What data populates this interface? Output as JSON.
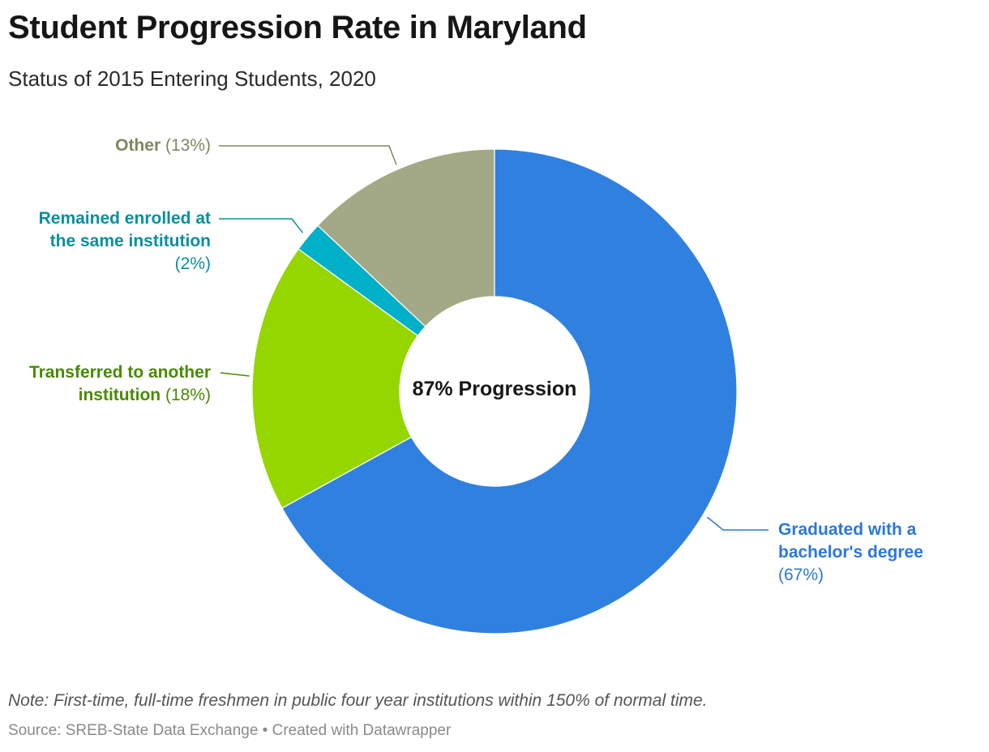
{
  "header": {
    "title": "Student Progression Rate in Maryland",
    "subtitle": "Status of 2015 Entering Students, 2020"
  },
  "chart_data": {
    "type": "pie",
    "donut": true,
    "title": "Student Progression Rate in Maryland",
    "subtitle": "Status of 2015 Entering Students, 2020",
    "center_label": "87% Progression",
    "slices": [
      {
        "name_line1": "Graduated with a",
        "name_line2": "bachelor's degree",
        "value": 67,
        "pct_text": "(67%)",
        "color": "#3080e0"
      },
      {
        "name_line1": "Transferred to another",
        "name_line2": "institution",
        "value": 18,
        "pct_text": "(18%)",
        "color": "#96d600"
      },
      {
        "name_line1": "Remained enrolled at",
        "name_line2": "the same institution",
        "value": 2,
        "pct_text": "(2%)",
        "color": "#00b0c8"
      },
      {
        "name_line1": "Other",
        "name_line2": "",
        "value": 13,
        "pct_text": "(13%)",
        "color": "#a3a986"
      }
    ],
    "label_colors": [
      "#2a78d8",
      "#4a8a00",
      "#0a8f9e",
      "#7f8661"
    ]
  },
  "footer": {
    "note": "Note: First-time, full-time freshmen in public four year institutions within 150% of normal time.",
    "source": "Source: SREB-State Data Exchange • Created with Datawrapper"
  }
}
